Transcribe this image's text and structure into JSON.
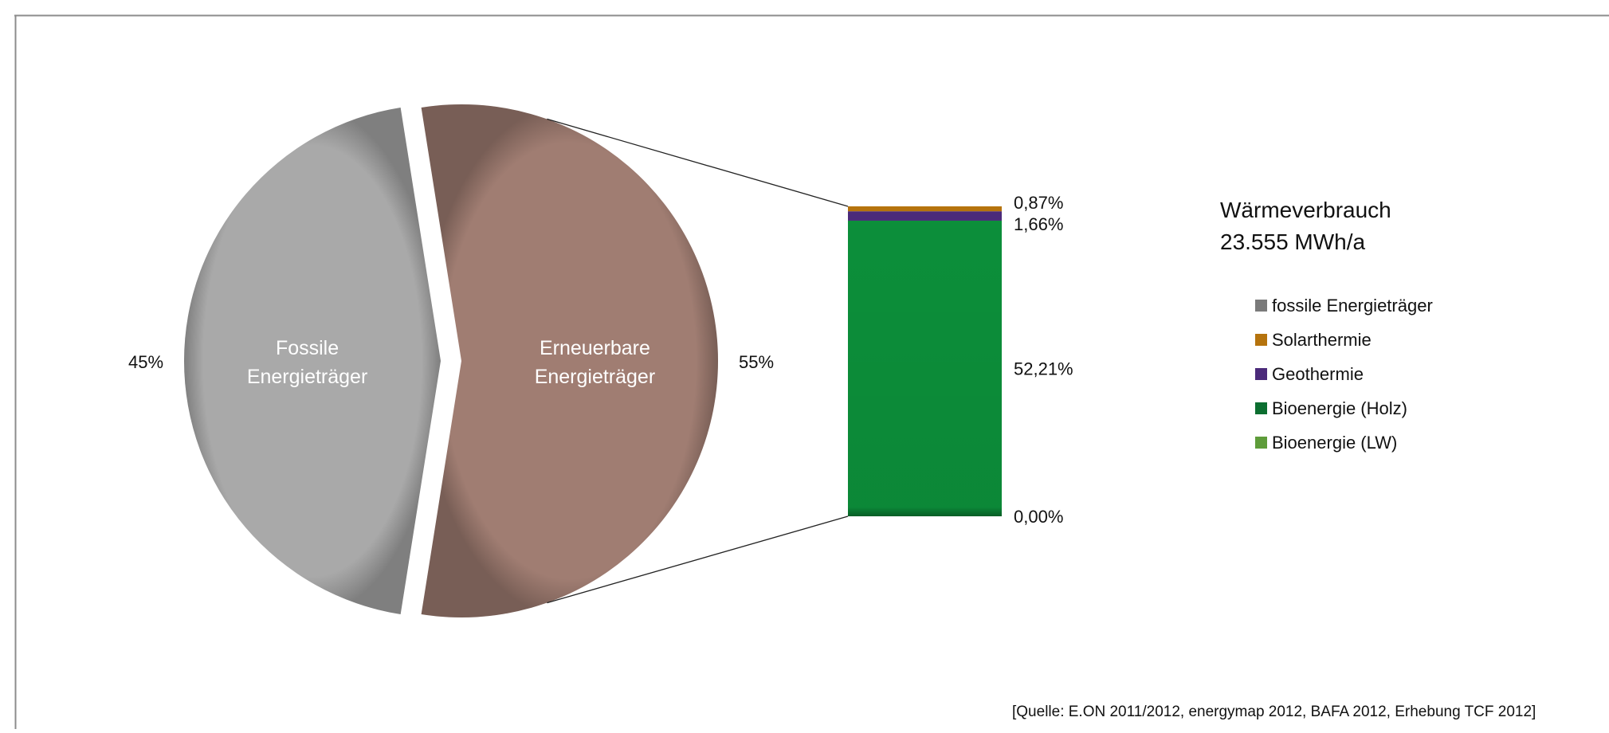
{
  "chart_data": {
    "type": "pie",
    "title": "Wärmeverbrauch",
    "subtitle": "23.555 MWh/a",
    "pie": {
      "slices": [
        {
          "label_line1": "Fossile",
          "label_line2": "Energieträger",
          "value": 45,
          "value_label": "45%",
          "color": "#a9a9a9"
        },
        {
          "label_line1": "Erneuerbare",
          "label_line2": "Energieträger",
          "value": 55,
          "value_label": "55%",
          "color": "#a07d72"
        }
      ]
    },
    "bar_of_pie": {
      "segments": [
        {
          "name": "Bioenergie (LW)",
          "value": 0.0,
          "value_label": "0,00%",
          "color": "#5e9c3a"
        },
        {
          "name": "Bioenergie (Holz)",
          "value": 52.21,
          "value_label": "52,21%",
          "color": "#0c8f3a"
        },
        {
          "name": "Geothermie",
          "value": 1.66,
          "value_label": "1,66%",
          "color": "#4b2a7a"
        },
        {
          "name": "Solarthermie",
          "value": 0.87,
          "value_label": "0,87%",
          "color": "#b5730d"
        }
      ]
    },
    "legend": {
      "position": "right",
      "items": [
        {
          "label": "fossile Energieträger",
          "color": "#7a7a7a"
        },
        {
          "label": "Solarthermie",
          "color": "#b5730d"
        },
        {
          "label": "Geothermie",
          "color": "#4b2a7a"
        },
        {
          "label": "Bioenergie (Holz)",
          "color": "#0c6e30"
        },
        {
          "label": "Bioenergie (LW)",
          "color": "#5e9c3a"
        }
      ]
    },
    "source": "[Quelle: E.ON 2011/2012,  energymap 2012,  BAFA 2012, Erhebung TCF 2012]"
  }
}
